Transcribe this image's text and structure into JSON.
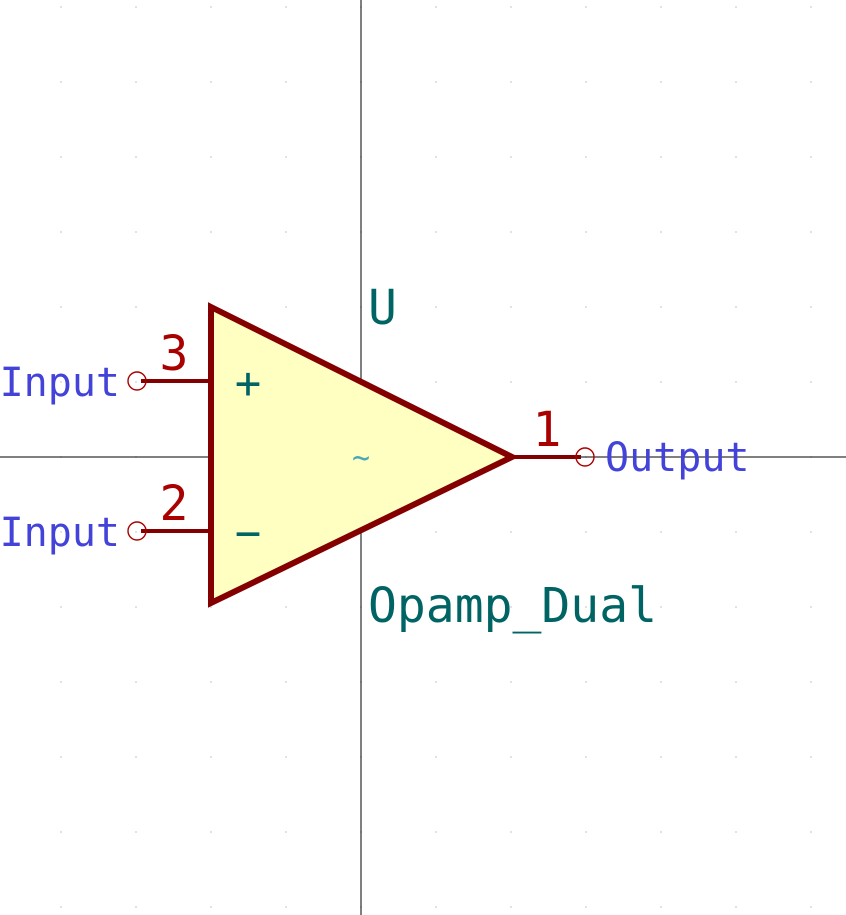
{
  "symbol": {
    "reference": "U",
    "value": "Opamp_Dual",
    "unit_marker": "~",
    "plus_sign": "+",
    "minus_sign": "−"
  },
  "pins": [
    {
      "number": "3",
      "name": "Input"
    },
    {
      "number": "2",
      "name": "Input"
    },
    {
      "number": "1",
      "name": "Output"
    }
  ],
  "colors": {
    "background": "#ffffff",
    "body_fill": "#ffffc2",
    "body_outline": "#840000",
    "pin_line": "#840000",
    "pin_number": "#a90000",
    "pin_name": "#4343d9",
    "field_text": "#006464",
    "crosshair": "#000000",
    "grid_dot": "#d8d8d8"
  }
}
